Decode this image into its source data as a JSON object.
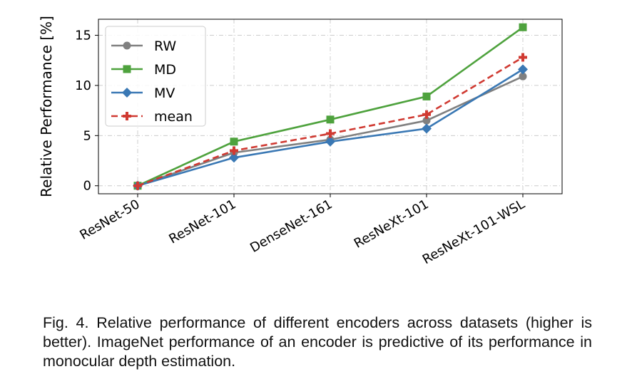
{
  "chart_data": {
    "type": "line",
    "categories": [
      "ResNet-50",
      "ResNet-101",
      "DenseNet-161",
      "ResNeXt-101",
      "ResNeXt-101-WSL"
    ],
    "ylabel": "Relative Performance [%]",
    "xlabel": "",
    "ylim": [
      -0.8,
      16.6
    ],
    "yticks": [
      0,
      5,
      10,
      15
    ],
    "grid": true,
    "legend": "top-left",
    "series": [
      {
        "name": "RW",
        "color": "#808080",
        "marker": "circle",
        "dash": false,
        "values": [
          0,
          3.3,
          4.6,
          6.5,
          10.9
        ]
      },
      {
        "name": "MD",
        "color": "#4ea23d",
        "marker": "square",
        "dash": false,
        "values": [
          0,
          4.4,
          6.6,
          8.9,
          15.8
        ]
      },
      {
        "name": "MV",
        "color": "#3a78b4",
        "marker": "diamond",
        "dash": false,
        "values": [
          0,
          2.8,
          4.4,
          5.7,
          11.6
        ]
      },
      {
        "name": "mean",
        "color": "#d03a32",
        "marker": "plus",
        "dash": true,
        "values": [
          0,
          3.5,
          5.2,
          7.1,
          12.8
        ]
      }
    ]
  },
  "caption": "Fig. 4. Relative performance of different encoders across datasets (higher is better). ImageNet performance of an encoder is predictive of its performance in monocular depth estimation."
}
